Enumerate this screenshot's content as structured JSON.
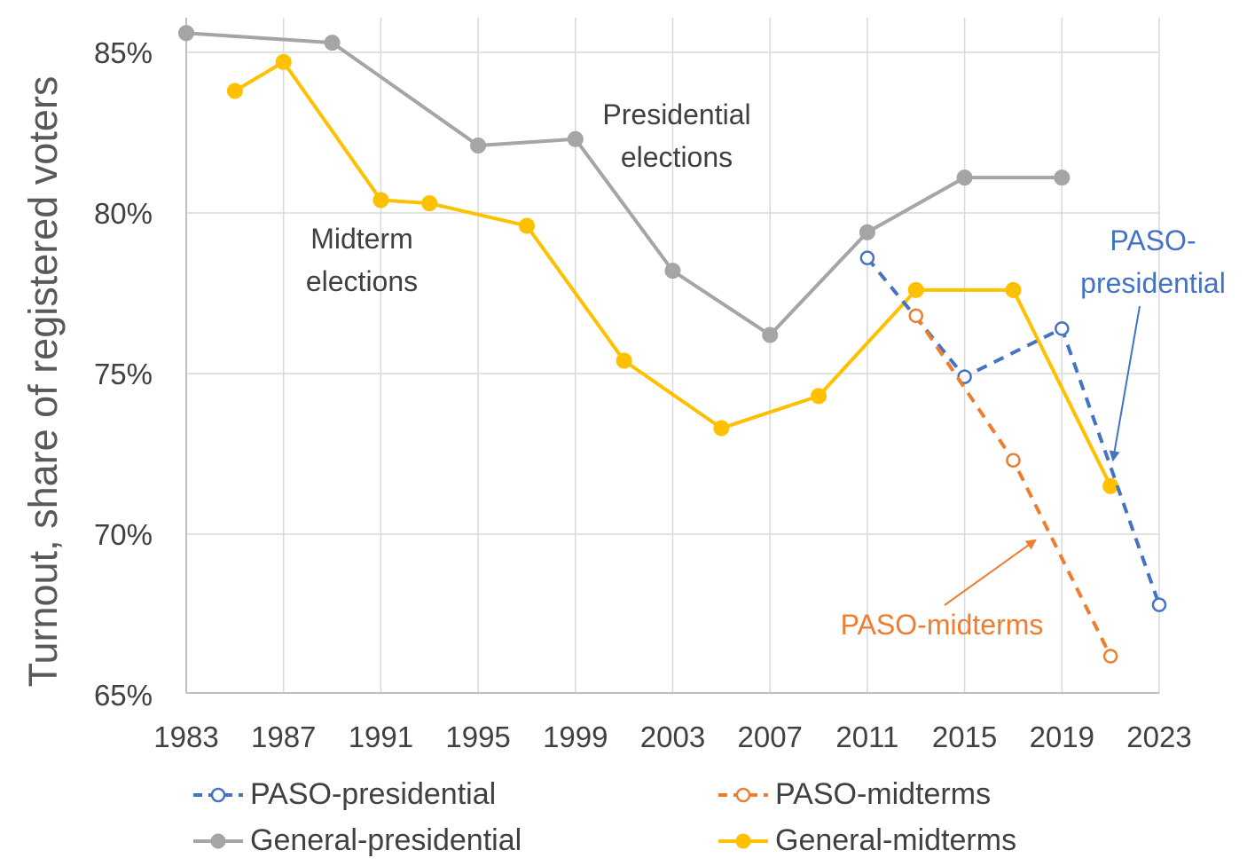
{
  "chart_data": {
    "type": "line",
    "title": "",
    "xlabel": "",
    "ylabel": "Turnout, share of registered voters",
    "xlim": [
      1983,
      2023
    ],
    "ylim": [
      65,
      86
    ],
    "xticks": [
      1983,
      1987,
      1991,
      1995,
      1999,
      2003,
      2007,
      2011,
      2015,
      2019,
      2023
    ],
    "xtick_labels": [
      "1983",
      "1987",
      "1991",
      "1995",
      "1999",
      "2003",
      "2007",
      "2011",
      "2015",
      "2019",
      "2023"
    ],
    "yticks": [
      65,
      70,
      75,
      80,
      85
    ],
    "ytick_labels": [
      "65%",
      "70%",
      "75%",
      "80%",
      "85%"
    ],
    "grid": "vertical and horizontal",
    "legend_position": "bottom",
    "series": [
      {
        "name": "PASO-presidential",
        "color": "#4472C4",
        "style": "dashed",
        "marker": "open-circle",
        "x": [
          2011,
          2015,
          2019,
          2023
        ],
        "y": [
          78.6,
          74.9,
          76.4,
          67.8
        ]
      },
      {
        "name": "PASO-midterms",
        "color": "#ED7D31",
        "style": "dashed",
        "marker": "open-circle",
        "x": [
          2013,
          2017,
          2021
        ],
        "y": [
          76.8,
          72.3,
          66.2
        ]
      },
      {
        "name": "General-presidential",
        "color": "#A5A5A5",
        "style": "solid",
        "marker": "filled-circle",
        "x": [
          1983,
          1989,
          1995,
          1999,
          2003,
          2007,
          2011,
          2015,
          2019
        ],
        "y": [
          85.6,
          85.3,
          82.1,
          82.3,
          78.2,
          76.2,
          79.4,
          81.1,
          81.1
        ]
      },
      {
        "name": "General-midterms",
        "color": "#FFC000",
        "style": "solid",
        "marker": "filled-circle",
        "x": [
          1985,
          1987,
          1991,
          1993,
          1997,
          2001,
          2005,
          2009,
          2013,
          2017,
          2021
        ],
        "y": [
          83.8,
          84.7,
          80.4,
          80.3,
          79.6,
          75.4,
          73.3,
          74.3,
          77.6,
          77.6,
          71.5
        ]
      }
    ],
    "annotations": [
      {
        "id": "presidential",
        "lines": [
          "Presidential",
          "elections"
        ],
        "color": "#404040"
      },
      {
        "id": "midterm",
        "lines": [
          "Midterm",
          "elections"
        ],
        "color": "#404040"
      },
      {
        "id": "paso-presidential",
        "lines": [
          "PASO-",
          "presidential"
        ],
        "color": "#4472C4"
      },
      {
        "id": "paso-midterms",
        "lines": [
          "PASO-midterms"
        ],
        "color": "#ED7D31"
      }
    ]
  }
}
